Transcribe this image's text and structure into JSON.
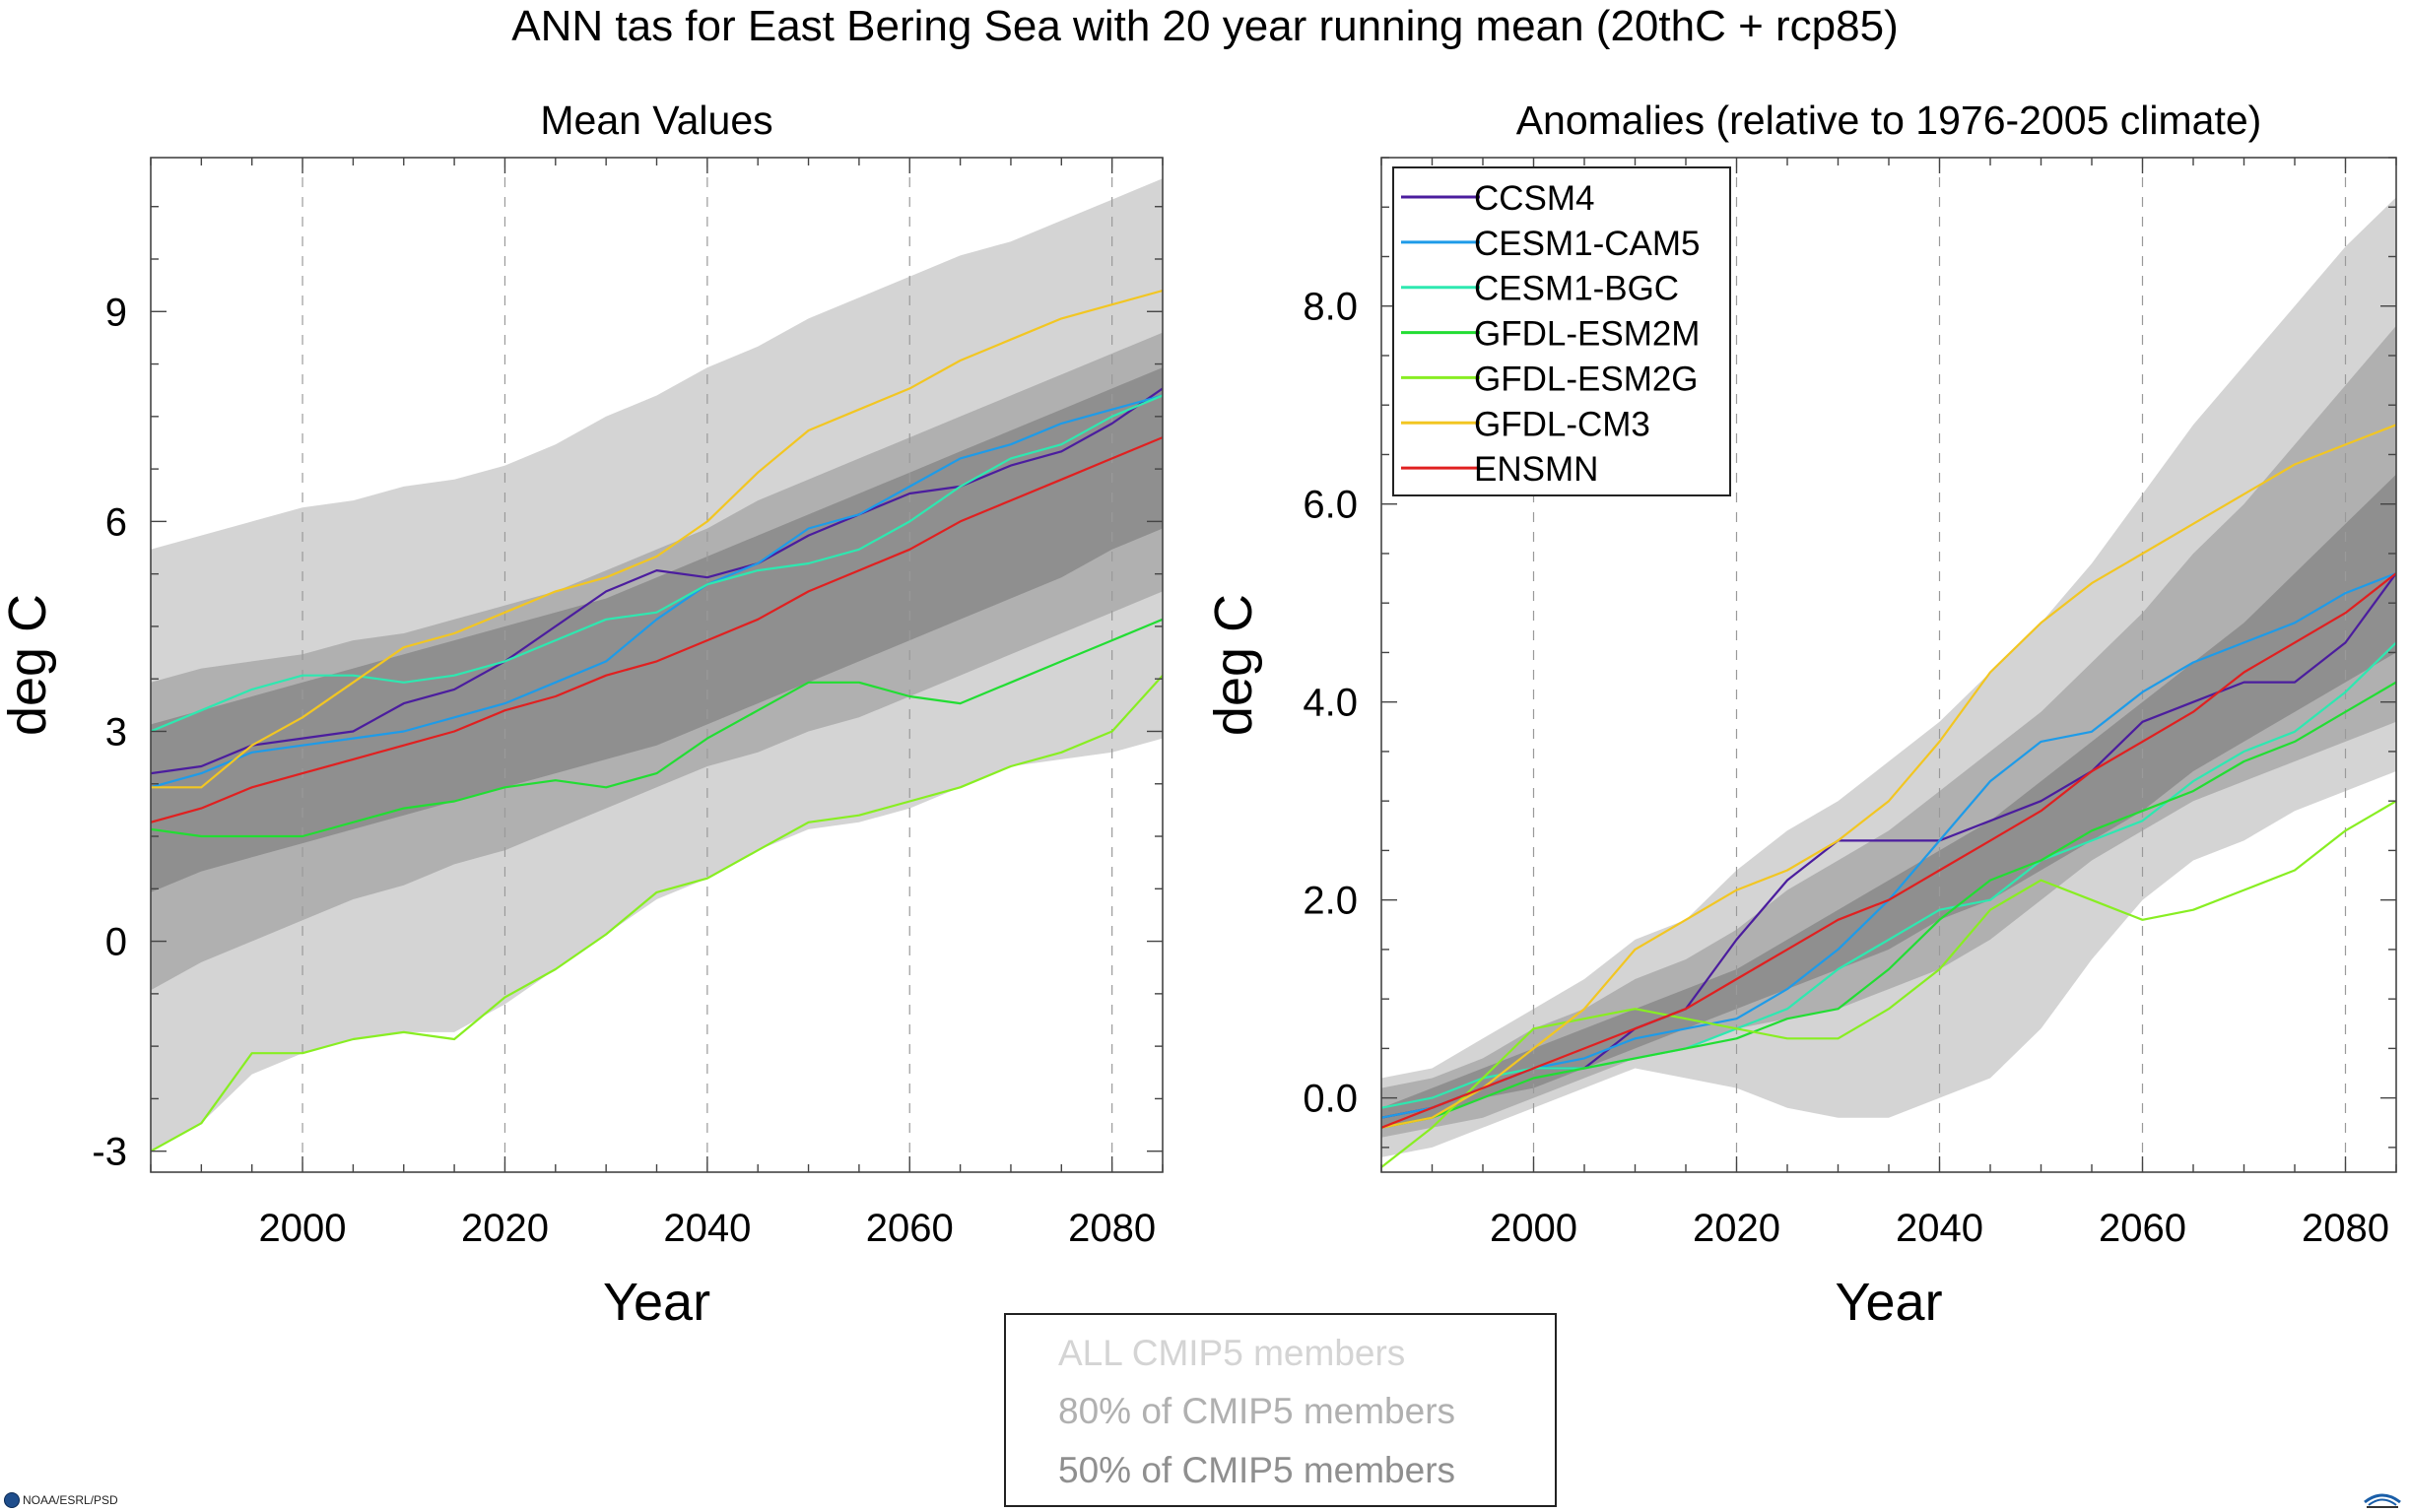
{
  "title": "ANN tas for East Bering Sea with 20 year running mean (20thC + rcp85)",
  "colors": {
    "all_band": "#d4d4d4",
    "p80_band": "#b0b0b0",
    "p50_band": "#8f8f8f",
    "series": {
      "CCSM4": "#4b1d9e",
      "CESM1-CAM5": "#1e9be8",
      "CESM1-BGC": "#2ee8b0",
      "GFDL-ESM2M": "#22dd33",
      "GFDL-ESM2G": "#88ee22",
      "GFDL-CM3": "#f2c622",
      "ENSMN": "#e02020"
    }
  },
  "band_legend": {
    "all": "ALL CMIP5 members",
    "p80": "80% of CMIP5 members",
    "p50": "50% of CMIP5 members"
  },
  "footer": {
    "left_text": "NOAA/ESRL/PSD",
    "left_icon": "noaa-logo-icon",
    "right_icon": "cires-logo-icon"
  },
  "chart_data": [
    {
      "type": "line",
      "title": "Mean Values",
      "xlabel": "Year",
      "ylabel": "deg C",
      "xlim": [
        1985,
        2085
      ],
      "ylim": [
        -3.3,
        11.2
      ],
      "xticks": [
        2000,
        2020,
        2040,
        2060,
        2080
      ],
      "yticks": [
        -3,
        0,
        3,
        6,
        9
      ],
      "ytick_labels": [
        "-3",
        "0",
        "3",
        "6",
        "9"
      ],
      "grid": "vertical dashed at x ticks",
      "x": [
        1985,
        1990,
        1995,
        2000,
        2005,
        2010,
        2015,
        2020,
        2025,
        2030,
        2035,
        2040,
        2045,
        2050,
        2055,
        2060,
        2065,
        2070,
        2075,
        2080,
        2085
      ],
      "bands": {
        "all": {
          "upper": [
            5.6,
            5.8,
            6.0,
            6.2,
            6.3,
            6.5,
            6.6,
            6.8,
            7.1,
            7.5,
            7.8,
            8.2,
            8.5,
            8.9,
            9.2,
            9.5,
            9.8,
            10.0,
            10.3,
            10.6,
            10.9
          ],
          "lower": [
            -3.0,
            -2.6,
            -1.9,
            -1.6,
            -1.4,
            -1.3,
            -1.3,
            -0.9,
            -0.4,
            0.1,
            0.6,
            0.9,
            1.3,
            1.6,
            1.7,
            1.9,
            2.2,
            2.5,
            2.6,
            2.7,
            2.9
          ]
        },
        "p80": {
          "upper": [
            3.7,
            3.9,
            4.0,
            4.1,
            4.3,
            4.4,
            4.6,
            4.8,
            5.0,
            5.3,
            5.6,
            5.9,
            6.3,
            6.6,
            6.9,
            7.2,
            7.5,
            7.8,
            8.1,
            8.4,
            8.7
          ],
          "lower": [
            -0.7,
            -0.3,
            0.0,
            0.3,
            0.6,
            0.8,
            1.1,
            1.3,
            1.6,
            1.9,
            2.2,
            2.5,
            2.7,
            3.0,
            3.2,
            3.5,
            3.8,
            4.1,
            4.4,
            4.7,
            5.0
          ]
        },
        "p50": {
          "upper": [
            3.1,
            3.3,
            3.5,
            3.7,
            3.9,
            4.1,
            4.3,
            4.5,
            4.7,
            4.9,
            5.2,
            5.5,
            5.8,
            6.1,
            6.4,
            6.7,
            7.0,
            7.3,
            7.6,
            7.9,
            8.2
          ],
          "lower": [
            0.7,
            1.0,
            1.2,
            1.4,
            1.6,
            1.8,
            2.0,
            2.2,
            2.4,
            2.6,
            2.8,
            3.1,
            3.4,
            3.7,
            4.0,
            4.3,
            4.6,
            4.9,
            5.2,
            5.6,
            5.9
          ]
        }
      },
      "series": [
        {
          "name": "CCSM4",
          "values": [
            2.4,
            2.5,
            2.8,
            2.9,
            3.0,
            3.4,
            3.6,
            4.0,
            4.5,
            5.0,
            5.3,
            5.2,
            5.4,
            5.8,
            6.1,
            6.4,
            6.5,
            6.8,
            7.0,
            7.4,
            7.9
          ]
        },
        {
          "name": "CESM1-CAM5",
          "values": [
            2.2,
            2.4,
            2.7,
            2.8,
            2.9,
            3.0,
            3.2,
            3.4,
            3.7,
            4.0,
            4.6,
            5.1,
            5.4,
            5.9,
            6.1,
            6.5,
            6.9,
            7.1,
            7.4,
            7.6,
            7.8
          ]
        },
        {
          "name": "CESM1-BGC",
          "values": [
            3.0,
            3.3,
            3.6,
            3.8,
            3.8,
            3.7,
            3.8,
            4.0,
            4.3,
            4.6,
            4.7,
            5.1,
            5.3,
            5.4,
            5.6,
            6.0,
            6.5,
            6.9,
            7.1,
            7.5,
            7.8
          ]
        },
        {
          "name": "GFDL-ESM2M",
          "values": [
            1.6,
            1.5,
            1.5,
            1.5,
            1.7,
            1.9,
            2.0,
            2.2,
            2.3,
            2.2,
            2.4,
            2.9,
            3.3,
            3.7,
            3.7,
            3.5,
            3.4,
            3.7,
            4.0,
            4.3,
            4.6
          ]
        },
        {
          "name": "GFDL-ESM2G",
          "values": [
            -3.0,
            -2.6,
            -1.6,
            -1.6,
            -1.4,
            -1.3,
            -1.4,
            -0.8,
            -0.4,
            0.1,
            0.7,
            0.9,
            1.3,
            1.7,
            1.8,
            2.0,
            2.2,
            2.5,
            2.7,
            3.0,
            3.8
          ]
        },
        {
          "name": "GFDL-CM3",
          "values": [
            2.2,
            2.2,
            2.8,
            3.2,
            3.7,
            4.2,
            4.4,
            4.7,
            5.0,
            5.2,
            5.5,
            6.0,
            6.7,
            7.3,
            7.6,
            7.9,
            8.3,
            8.6,
            8.9,
            9.1,
            9.3
          ]
        },
        {
          "name": "ENSMN",
          "values": [
            1.7,
            1.9,
            2.2,
            2.4,
            2.6,
            2.8,
            3.0,
            3.3,
            3.5,
            3.8,
            4.0,
            4.3,
            4.6,
            5.0,
            5.3,
            5.6,
            6.0,
            6.3,
            6.6,
            6.9,
            7.2
          ]
        }
      ]
    },
    {
      "type": "line",
      "title": "Anomalies (relative to 1976-2005 climate)",
      "xlabel": "Year",
      "ylabel": "deg C",
      "xlim": [
        1985,
        2085
      ],
      "ylim": [
        -0.75,
        9.5
      ],
      "xticks": [
        2000,
        2020,
        2040,
        2060,
        2080
      ],
      "yticks": [
        0,
        2,
        4,
        6,
        8
      ],
      "ytick_labels": [
        "0.0",
        "2.0",
        "4.0",
        "6.0",
        "8.0"
      ],
      "grid": "vertical dashed at x ticks",
      "legend_position": "top-left",
      "x": [
        1985,
        1990,
        1995,
        2000,
        2005,
        2010,
        2015,
        2020,
        2025,
        2030,
        2035,
        2040,
        2045,
        2050,
        2055,
        2060,
        2065,
        2070,
        2075,
        2080,
        2085
      ],
      "bands": {
        "all": {
          "upper": [
            0.2,
            0.3,
            0.6,
            0.9,
            1.2,
            1.6,
            1.8,
            2.3,
            2.7,
            3.0,
            3.4,
            3.8,
            4.3,
            4.8,
            5.4,
            6.1,
            6.8,
            7.4,
            8.0,
            8.6,
            9.1
          ],
          "lower": [
            -0.6,
            -0.5,
            -0.3,
            -0.1,
            0.1,
            0.3,
            0.2,
            0.1,
            -0.1,
            -0.2,
            -0.2,
            0.0,
            0.2,
            0.7,
            1.4,
            2.0,
            2.4,
            2.6,
            2.9,
            3.1,
            3.3
          ]
        },
        "p80": {
          "upper": [
            0.1,
            0.2,
            0.4,
            0.7,
            0.9,
            1.2,
            1.4,
            1.7,
            2.1,
            2.4,
            2.7,
            3.1,
            3.5,
            3.9,
            4.4,
            4.9,
            5.5,
            6.0,
            6.6,
            7.2,
            7.8
          ],
          "lower": [
            -0.4,
            -0.3,
            -0.2,
            0.0,
            0.2,
            0.4,
            0.5,
            0.7,
            0.8,
            0.9,
            1.1,
            1.3,
            1.6,
            2.0,
            2.4,
            2.7,
            3.0,
            3.2,
            3.4,
            3.6,
            3.8
          ]
        },
        "p50": {
          "upper": [
            -0.1,
            0.1,
            0.3,
            0.5,
            0.7,
            0.9,
            1.1,
            1.3,
            1.6,
            1.9,
            2.2,
            2.5,
            2.8,
            3.2,
            3.6,
            4.0,
            4.4,
            4.8,
            5.3,
            5.8,
            6.3
          ],
          "lower": [
            -0.3,
            -0.2,
            0.0,
            0.1,
            0.3,
            0.5,
            0.7,
            0.9,
            1.1,
            1.3,
            1.5,
            1.8,
            2.0,
            2.3,
            2.6,
            2.9,
            3.3,
            3.6,
            3.9,
            4.2,
            4.5
          ]
        }
      },
      "series": [
        {
          "name": "CCSM4",
          "values": [
            -0.2,
            -0.1,
            0.1,
            0.3,
            0.3,
            0.7,
            0.9,
            1.6,
            2.2,
            2.6,
            2.6,
            2.6,
            2.8,
            3.0,
            3.3,
            3.8,
            4.0,
            4.2,
            4.2,
            4.6,
            5.3
          ]
        },
        {
          "name": "CESM1-CAM5",
          "values": [
            -0.2,
            -0.1,
            0.1,
            0.3,
            0.4,
            0.6,
            0.7,
            0.8,
            1.1,
            1.5,
            2.0,
            2.6,
            3.2,
            3.6,
            3.7,
            4.1,
            4.4,
            4.6,
            4.8,
            5.1,
            5.3
          ]
        },
        {
          "name": "CESM1-BGC",
          "values": [
            -0.1,
            0.0,
            0.2,
            0.3,
            0.3,
            0.4,
            0.5,
            0.7,
            0.9,
            1.3,
            1.6,
            1.9,
            2.0,
            2.4,
            2.6,
            2.8,
            3.2,
            3.5,
            3.7,
            4.1,
            4.6
          ]
        },
        {
          "name": "GFDL-ESM2M",
          "values": [
            -0.3,
            -0.2,
            0.0,
            0.2,
            0.3,
            0.4,
            0.5,
            0.6,
            0.8,
            0.9,
            1.3,
            1.8,
            2.2,
            2.4,
            2.7,
            2.9,
            3.1,
            3.4,
            3.6,
            3.9,
            4.2
          ]
        },
        {
          "name": "GFDL-ESM2G",
          "values": [
            -0.7,
            -0.3,
            0.2,
            0.7,
            0.8,
            0.9,
            0.8,
            0.7,
            0.6,
            0.6,
            0.9,
            1.3,
            1.9,
            2.2,
            2.0,
            1.8,
            1.9,
            2.1,
            2.3,
            2.7,
            3.0
          ]
        },
        {
          "name": "GFDL-CM3",
          "values": [
            -0.3,
            -0.2,
            0.1,
            0.5,
            0.9,
            1.5,
            1.8,
            2.1,
            2.3,
            2.6,
            3.0,
            3.6,
            4.3,
            4.8,
            5.2,
            5.5,
            5.8,
            6.1,
            6.4,
            6.6,
            6.8
          ]
        },
        {
          "name": "ENSMN",
          "values": [
            -0.3,
            -0.1,
            0.1,
            0.3,
            0.5,
            0.7,
            0.9,
            1.2,
            1.5,
            1.8,
            2.0,
            2.3,
            2.6,
            2.9,
            3.3,
            3.6,
            3.9,
            4.3,
            4.6,
            4.9,
            5.3
          ]
        }
      ]
    }
  ]
}
